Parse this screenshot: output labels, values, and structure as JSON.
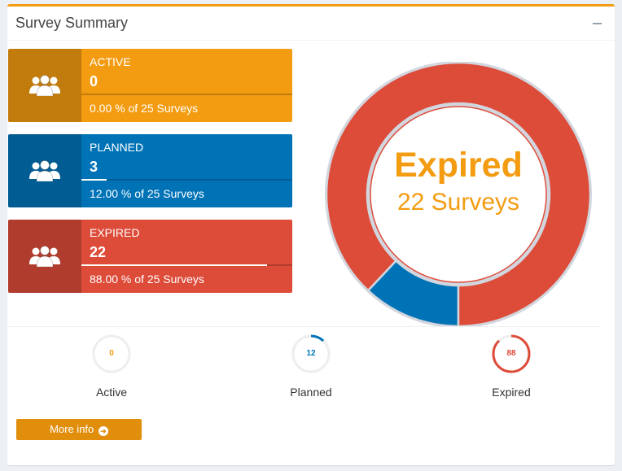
{
  "panel": {
    "title": "Survey Summary",
    "collapse_icon": "minus-icon",
    "border_color": "#f39c12"
  },
  "info_boxes": [
    {
      "label": "ACTIVE",
      "number": "0",
      "desc": "0.00 % of 25 Surveys",
      "percent": 0,
      "color": "#f39c12",
      "icon": "users-icon"
    },
    {
      "label": "PLANNED",
      "number": "3",
      "desc": "12.00 % of 25 Surveys",
      "percent": 12,
      "color": "#0073b7",
      "icon": "users-icon"
    },
    {
      "label": "EXPIRED",
      "number": "22",
      "desc": "88.00 % of 25 Surveys",
      "percent": 88,
      "color": "#dd4b39",
      "icon": "users-icon"
    }
  ],
  "chart_data": {
    "type": "pie",
    "categories": [
      "Active",
      "Planned",
      "Expired"
    ],
    "values": [
      0,
      3,
      22
    ],
    "colors": [
      "#f39c12",
      "#0073b7",
      "#dd4b39"
    ],
    "title": "Expired",
    "subtitle": "22 Surveys"
  },
  "knobs": [
    {
      "label": "Active",
      "value": "0",
      "percent": 0,
      "color": "#f39c12"
    },
    {
      "label": "Planned",
      "value": "12",
      "percent": 12,
      "color": "#0073b7"
    },
    {
      "label": "Expired",
      "value": "88",
      "percent": 88,
      "color": "#dd4b39"
    }
  ],
  "more_info": {
    "label": "More info",
    "icon": "arrow-circle-right-icon",
    "color": "#e08e0b"
  }
}
